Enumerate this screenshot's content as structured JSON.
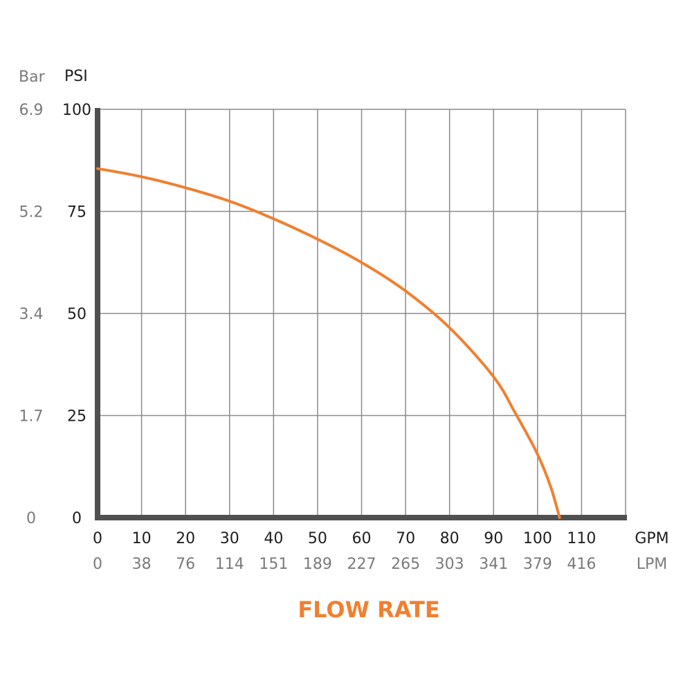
{
  "chart_data": {
    "type": "line",
    "title": "FLOW RATE",
    "y_axis_left_unit": "Bar",
    "y_axis_right_unit": "PSI",
    "x_axis_primary_unit": "GPM",
    "x_axis_secondary_unit": "LPM",
    "y_ticks_psi": [
      "0",
      "25",
      "50",
      "75",
      "100"
    ],
    "y_ticks_bar": [
      "0",
      "1.7",
      "3.4",
      "5.2",
      "6.9"
    ],
    "x_ticks_gpm": [
      "0",
      "10",
      "20",
      "30",
      "40",
      "50",
      "60",
      "70",
      "80",
      "90",
      "100",
      "110"
    ],
    "x_ticks_lpm": [
      "0",
      "38",
      "76",
      "114",
      "151",
      "189",
      "227",
      "265",
      "303",
      "341",
      "379",
      "416"
    ],
    "xlim": [
      0,
      120
    ],
    "ylim": [
      0,
      100
    ],
    "grid": true,
    "colors": {
      "curve": "#f08030",
      "axis": "#505050",
      "grid": "#8a8a8a",
      "title": "#f08030"
    },
    "series": [
      {
        "x": [
          0,
          10,
          20,
          30,
          40,
          50,
          60,
          70,
          80,
          90,
          95,
          100,
          103,
          105
        ],
        "y": [
          85.5,
          83.5,
          80.8,
          77.5,
          73.2,
          68.2,
          62.5,
          55.5,
          46.5,
          34.5,
          25.5,
          15.5,
          7.5,
          0
        ]
      }
    ]
  }
}
